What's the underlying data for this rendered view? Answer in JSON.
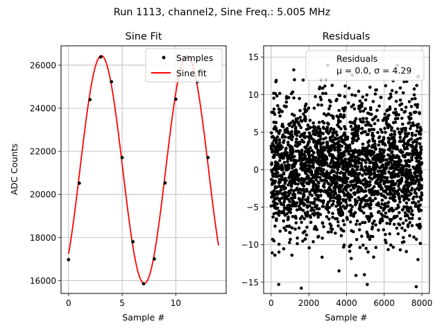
{
  "figure": {
    "suptitle": "Run 1113, channel2, Sine Freq.: 5.005 MHz"
  },
  "chart_data": [
    {
      "type": "line",
      "title": "Sine Fit",
      "xlabel": "Sample #",
      "ylabel": "ADC Counts",
      "xlim": [
        -0.7,
        14.7
      ],
      "ylim": [
        15400,
        26900
      ],
      "xticks": [
        0,
        5,
        10
      ],
      "yticks": [
        16000,
        18000,
        20000,
        22000,
        24000,
        26000
      ],
      "grid": true,
      "legend": {
        "position": "top-right",
        "entries": [
          "Samples",
          "Sine fit"
        ]
      },
      "series": [
        {
          "name": "Samples",
          "style": "points",
          "color": "#000000",
          "x": [
            0,
            1,
            2,
            3,
            4,
            5,
            6,
            7,
            8,
            9,
            10,
            11,
            12,
            13
          ],
          "y": [
            16970,
            20520,
            24400,
            26380,
            25230,
            21710,
            17800,
            15850,
            17000,
            20530,
            24420,
            26380,
            25230,
            21710
          ]
        },
        {
          "name": "Sine fit",
          "style": "line",
          "color": "#ff0000",
          "model": {
            "offset": 21150,
            "amplitude": 5290,
            "period": 8.0,
            "x_at_max": 3.06,
            "x_range": [
              0,
              13.99
            ]
          }
        }
      ]
    },
    {
      "type": "scatter",
      "title": "Residuals",
      "xlabel": "Sample #",
      "ylabel": "",
      "xlim": [
        -400,
        8400
      ],
      "ylim": [
        -16.5,
        16.5
      ],
      "xticks": [
        0,
        2000,
        4000,
        6000,
        8000
      ],
      "yticks": [
        -15,
        -10,
        -5,
        0,
        5,
        10,
        15
      ],
      "grid": true,
      "legend": {
        "position": "top-right",
        "entries": [
          "Residuals"
        ],
        "line2_text": "μ = 0.0, ",
        "line2_sigma_text": "σ = 4.29"
      },
      "series": [
        {
          "name": "Residuals",
          "style": "points",
          "color": "#000000",
          "distribution": {
            "n_points": 8000,
            "mean": 0.0,
            "sigma": 4.29,
            "x_range": [
              0,
              7999
            ]
          },
          "outliers": [
            {
              "x": 200,
              "y": -11.4
            },
            {
              "x": 400,
              "y": -15.3
            },
            {
              "x": 1100,
              "y": -11.4
            },
            {
              "x": 1600,
              "y": -15.8
            },
            {
              "x": 3600,
              "y": -13.5
            },
            {
              "x": 4500,
              "y": -14.1
            },
            {
              "x": 4950,
              "y": -14.0
            },
            {
              "x": 5100,
              "y": -15.3
            },
            {
              "x": 7700,
              "y": -15.6
            },
            {
              "x": 1200,
              "y": 13.3
            },
            {
              "x": 3000,
              "y": 13.9
            },
            {
              "x": 6700,
              "y": 13.9
            },
            {
              "x": 7800,
              "y": 12.4
            },
            {
              "x": 250,
              "y": 11.7
            },
            {
              "x": 4300,
              "y": 12.6
            }
          ]
        }
      ]
    }
  ]
}
